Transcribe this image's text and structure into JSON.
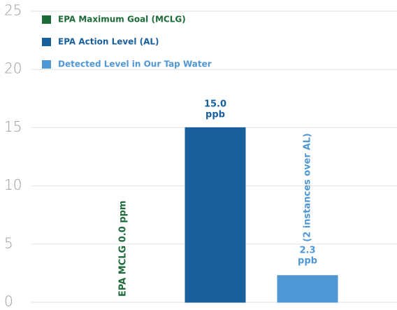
{
  "chart_data": {
    "type": "bar",
    "categories": [
      null,
      null,
      null
    ],
    "series": [
      {
        "name": "EPA Maximum Goal (MCLG)",
        "color": "#1c6b38",
        "values": [
          0,
          null,
          null
        ],
        "value_labels": [
          "EPA MCLG 0.0 ppm",
          null,
          null
        ]
      },
      {
        "name": "EPA Action Level (AL)",
        "color": "#195f9c",
        "values": [
          null,
          15.0,
          null
        ],
        "value_labels": [
          null,
          "15.0 ppb",
          null
        ]
      },
      {
        "name": "Detected Level in Our Tap Water",
        "color": "#4f97d5",
        "values": [
          null,
          null,
          2.3
        ],
        "value_labels": [
          null,
          null,
          "2.3 ppb"
        ]
      }
    ],
    "annotations": [
      "(2 instances over AL)"
    ],
    "ylim": [
      0,
      25
    ],
    "yticks": [
      0,
      5,
      10,
      15,
      20,
      25
    ],
    "grid": true,
    "legend": "upper left"
  }
}
